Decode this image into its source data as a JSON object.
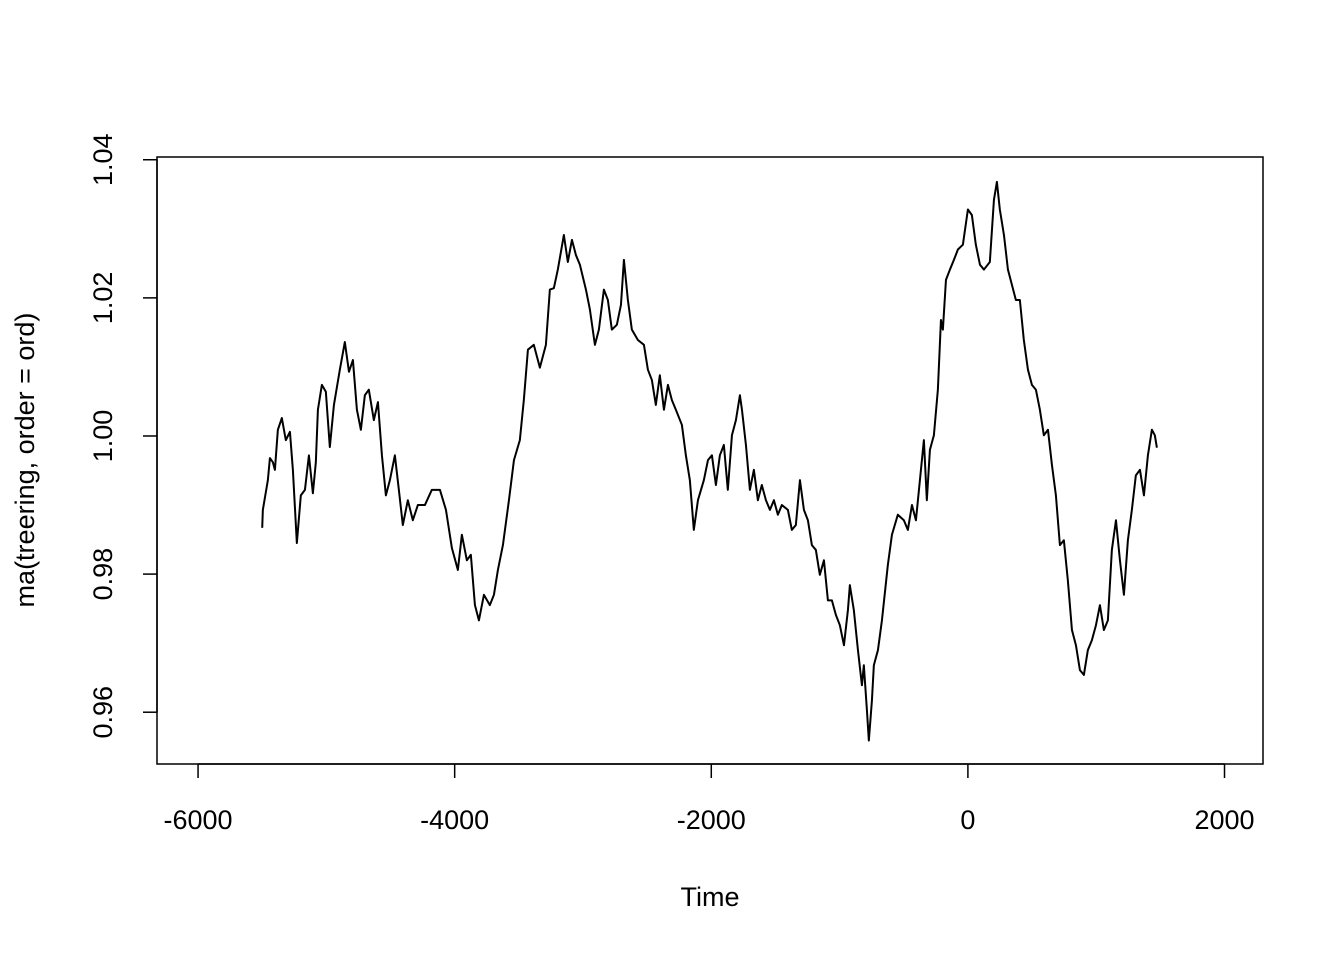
{
  "chart_data": {
    "type": "line",
    "x_label": "Time",
    "y_label": "ma(treering, order = ord)",
    "color": "#000000",
    "xlim": [
      -6320,
      2300
    ],
    "xticks": [
      -6000,
      -4000,
      -2000,
      0,
      2000
    ],
    "ylim": [
      0.9525,
      1.0404
    ],
    "yticks": [
      0.96,
      0.98,
      {
        "value": 1,
        "label": "1.00"
      },
      1.02,
      1.04
    ],
    "x": [
      -5500,
      -5495,
      -5456,
      -5440,
      -5417,
      -5401,
      -5378,
      -5347,
      -5316,
      -5284,
      -5261,
      -5230,
      -5199,
      -5167,
      -5136,
      -5105,
      -5082,
      -5066,
      -5035,
      -5004,
      -4973,
      -4941,
      -4895,
      -4856,
      -4824,
      -4793,
      -4762,
      -4731,
      -4700,
      -4669,
      -4630,
      -4598,
      -4567,
      -4536,
      -4505,
      -4466,
      -4435,
      -4404,
      -4365,
      -4326,
      -4287,
      -4232,
      -4178,
      -4115,
      -4068,
      -4022,
      -3975,
      -3944,
      -3905,
      -3874,
      -3842,
      -3811,
      -3772,
      -3726,
      -3694,
      -3663,
      -3624,
      -3577,
      -3538,
      -3492,
      -3461,
      -3429,
      -3383,
      -3336,
      -3289,
      -3258,
      -3227,
      -3196,
      -3149,
      -3118,
      -3086,
      -3055,
      -3024,
      -2977,
      -2946,
      -2907,
      -2876,
      -2837,
      -2806,
      -2775,
      -2736,
      -2704,
      -2681,
      -2650,
      -2619,
      -2572,
      -2525,
      -2494,
      -2463,
      -2432,
      -2401,
      -2369,
      -2338,
      -2307,
      -2276,
      -2229,
      -2198,
      -2167,
      -2136,
      -2104,
      -2058,
      -2026,
      -1995,
      -1964,
      -1933,
      -1902,
      -1871,
      -1839,
      -1808,
      -1777,
      -1761,
      -1730,
      -1699,
      -1668,
      -1637,
      -1606,
      -1574,
      -1543,
      -1512,
      -1481,
      -1450,
      -1403,
      -1372,
      -1341,
      -1309,
      -1278,
      -1247,
      -1216,
      -1185,
      -1154,
      -1122,
      -1091,
      -1060,
      -1029,
      -998,
      -966,
      -935,
      -920,
      -889,
      -857,
      -826,
      -811,
      -787,
      -772,
      -748,
      -733,
      -701,
      -670,
      -624,
      -592,
      -546,
      -499,
      -468,
      -436,
      -405,
      -374,
      -343,
      -320,
      -296,
      -265,
      -234,
      -210,
      -195,
      -171,
      -140,
      -109,
      -78,
      -39,
      0,
      31,
      62,
      94,
      125,
      171,
      203,
      226,
      249,
      281,
      312,
      343,
      374,
      405,
      436,
      468,
      499,
      530,
      561,
      592,
      624,
      655,
      686,
      717,
      748,
      779,
      811,
      842,
      873,
      904,
      935,
      966,
      998,
      1029,
      1060,
      1091,
      1122,
      1154,
      1185,
      1216,
      1247,
      1278,
      1309,
      1341,
      1372,
      1403,
      1434,
      1457,
      1473
    ],
    "values": [
      0.9867,
      0.9893,
      0.9936,
      0.9968,
      0.9962,
      0.9951,
      1.0009,
      1.0026,
      0.9994,
      1.0006,
      0.9951,
      0.9845,
      0.9914,
      0.9922,
      0.9972,
      0.9917,
      0.9962,
      1.0038,
      1.0074,
      1.0064,
      0.9984,
      1.0045,
      1.0096,
      1.0136,
      1.0093,
      1.011,
      1.0038,
      1.0009,
      1.0059,
      1.0067,
      1.0023,
      1.0049,
      0.9972,
      0.9914,
      0.9936,
      0.9972,
      0.9922,
      0.9871,
      0.9907,
      0.9878,
      0.99,
      0.99,
      0.9922,
      0.9922,
      0.9893,
      0.9838,
      0.9806,
      0.9857,
      0.982,
      0.9828,
      0.9755,
      0.9733,
      0.977,
      0.9755,
      0.977,
      0.9806,
      0.9842,
      0.9907,
      0.9965,
      0.9994,
      1.0052,
      1.0125,
      1.0132,
      1.0099,
      1.0132,
      1.0212,
      1.0214,
      1.0241,
      1.0291,
      1.0252,
      1.0284,
      1.0262,
      1.0248,
      1.0212,
      1.0183,
      1.0132,
      1.0154,
      1.0212,
      1.0197,
      1.0154,
      1.0161,
      1.019,
      1.0255,
      1.0197,
      1.0154,
      1.0139,
      1.0132,
      1.0096,
      1.0081,
      1.0045,
      1.0088,
      1.0038,
      1.0074,
      1.0052,
      1.0038,
      1.0016,
      0.9972,
      0.9936,
      0.9864,
      0.9907,
      0.9936,
      0.9965,
      0.9972,
      0.9929,
      0.9972,
      0.9987,
      0.9922,
      1.0001,
      1.0023,
      1.0059,
      1.0038,
      0.9987,
      0.9922,
      0.9951,
      0.9907,
      0.9929,
      0.9907,
      0.9893,
      0.9907,
      0.9886,
      0.99,
      0.9893,
      0.9864,
      0.9871,
      0.9936,
      0.9893,
      0.9878,
      0.9842,
      0.9835,
      0.9799,
      0.982,
      0.9762,
      0.9762,
      0.9741,
      0.9726,
      0.9697,
      0.9748,
      0.9784,
      0.9748,
      0.969,
      0.9639,
      0.9668,
      0.9603,
      0.9559,
      0.9617,
      0.9668,
      0.969,
      0.9733,
      0.9813,
      0.9857,
      0.9886,
      0.9878,
      0.9864,
      0.99,
      0.9878,
      0.9936,
      0.9994,
      0.9907,
      0.998,
      1.0001,
      1.0067,
      1.0168,
      1.0154,
      1.0226,
      1.0241,
      1.0255,
      1.027,
      1.0277,
      1.0328,
      1.032,
      1.0277,
      1.0248,
      1.0241,
      1.0252,
      1.0342,
      1.0368,
      1.0328,
      1.0291,
      1.0241,
      1.0219,
      1.0197,
      1.0197,
      1.0139,
      1.0096,
      1.0074,
      1.0067,
      1.0038,
      1.0001,
      1.0009,
      0.9958,
      0.9914,
      0.9842,
      0.9849,
      0.9791,
      0.9719,
      0.9697,
      0.9661,
      0.9654,
      0.969,
      0.9704,
      0.9726,
      0.9755,
      0.9719,
      0.9733,
      0.9835,
      0.9878,
      0.982,
      0.977,
      0.9849,
      0.9893,
      0.9943,
      0.9951,
      0.9914,
      0.9972,
      1.0009,
      1.0001,
      0.9983
    ]
  }
}
